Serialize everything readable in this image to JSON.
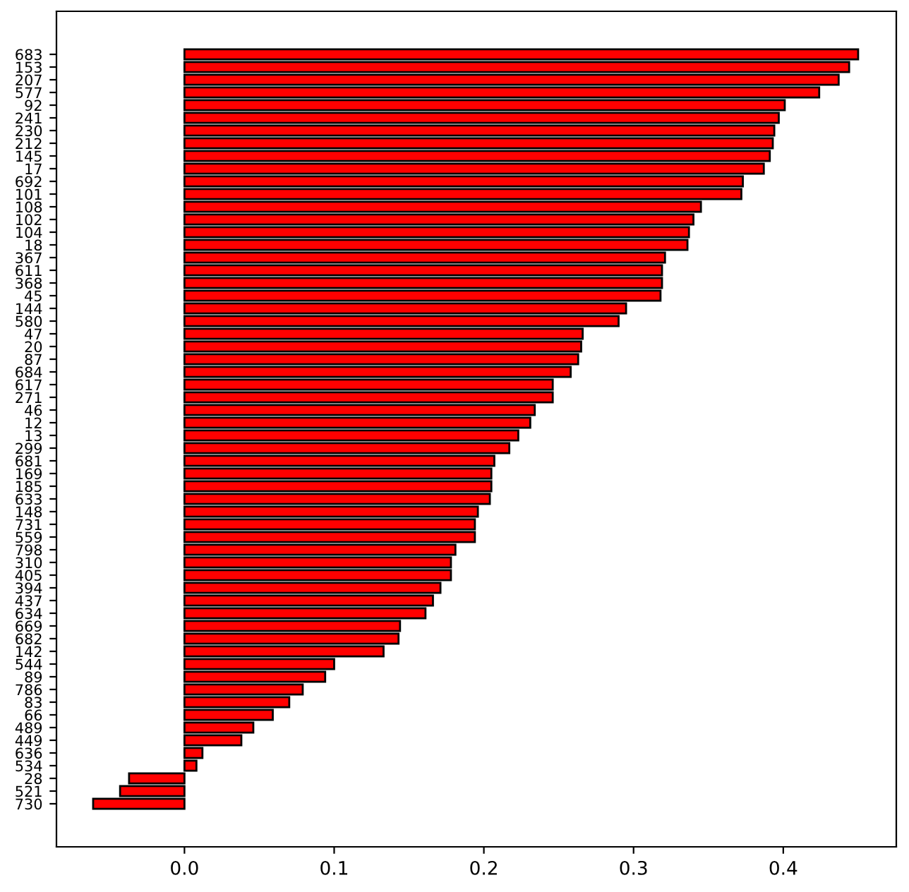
{
  "chart_data": {
    "type": "bar",
    "orientation": "horizontal",
    "categories": [
      "683",
      "153",
      "207",
      "577",
      "92",
      "241",
      "230",
      "212",
      "145",
      "17",
      "692",
      "101",
      "108",
      "102",
      "104",
      "18",
      "367",
      "611",
      "368",
      "45",
      "144",
      "580",
      "47",
      "20",
      "87",
      "684",
      "617",
      "271",
      "46",
      "12",
      "13",
      "299",
      "681",
      "169",
      "185",
      "633",
      "148",
      "731",
      "559",
      "798",
      "310",
      "405",
      "394",
      "437",
      "634",
      "669",
      "682",
      "142",
      "544",
      "89",
      "786",
      "83",
      "66",
      "489",
      "449",
      "636",
      "534",
      "28",
      "521",
      "730"
    ],
    "values": [
      0.45,
      0.444,
      0.437,
      0.424,
      0.401,
      0.397,
      0.394,
      0.393,
      0.391,
      0.387,
      0.373,
      0.372,
      0.345,
      0.34,
      0.337,
      0.336,
      0.321,
      0.319,
      0.319,
      0.318,
      0.295,
      0.29,
      0.266,
      0.265,
      0.263,
      0.258,
      0.246,
      0.246,
      0.234,
      0.231,
      0.223,
      0.217,
      0.207,
      0.205,
      0.205,
      0.204,
      0.196,
      0.194,
      0.194,
      0.181,
      0.178,
      0.178,
      0.171,
      0.166,
      0.161,
      0.144,
      0.143,
      0.133,
      0.1,
      0.094,
      0.079,
      0.07,
      0.059,
      0.046,
      0.038,
      0.012,
      0.008,
      -0.037,
      -0.043,
      -0.061
    ],
    "color": "#ff0000",
    "xlim": [
      -0.0855,
      0.4755
    ],
    "xticks": [
      {
        "value": 0,
        "label": "0.0"
      },
      0.1,
      0.2,
      0.3,
      0.4
    ],
    "grid": false
  }
}
